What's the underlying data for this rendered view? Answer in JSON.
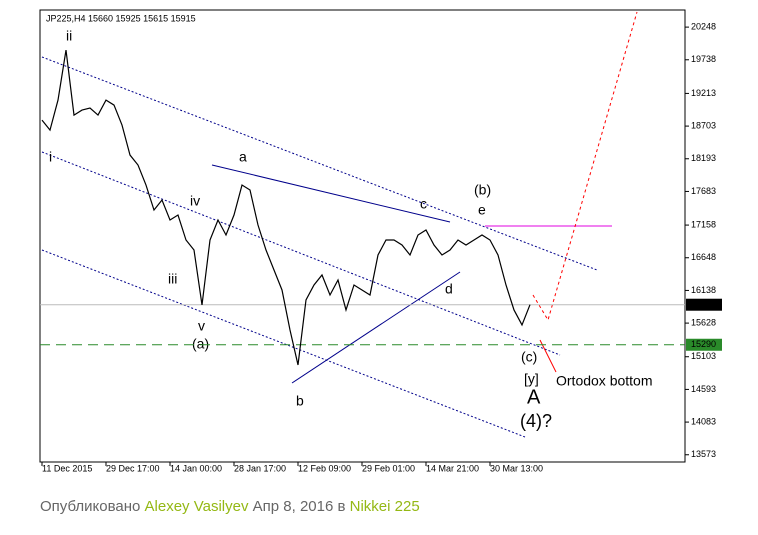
{
  "chart_data": {
    "type": "line",
    "title": "JP225,H4  15660 15925 15615 15915",
    "categories": [
      "11 Dec 2015",
      null,
      null,
      null,
      null,
      null,
      null,
      null,
      "29 Dec 17:00",
      null,
      null,
      null,
      null,
      null,
      null,
      null,
      "14 Jan 00:00",
      null,
      null,
      null,
      null,
      null,
      null,
      null,
      "28 Jan 17:00",
      null,
      null,
      null,
      null,
      null,
      null,
      null,
      "12 Feb 09:00",
      null,
      null,
      null,
      null,
      null,
      null,
      null,
      "29 Feb 01:00",
      null,
      null,
      null,
      null,
      null,
      null,
      null,
      "14 Mar 21:00",
      null,
      null,
      null,
      null,
      null,
      null,
      null,
      "30 Mar 13:00",
      null,
      null,
      null,
      null,
      null
    ],
    "values": [
      18797,
      18641,
      19109,
      19889,
      18875,
      18953,
      18984,
      18875,
      19109,
      19031,
      18719,
      18251,
      18095,
      17783,
      17393,
      17549,
      17237,
      17315,
      16925,
      16769,
      15911,
      16925,
      17237,
      17003,
      17315,
      17783,
      17705,
      17159,
      16769,
      16457,
      16145,
      15521,
      14975,
      15989,
      16223,
      16379,
      16067,
      16301,
      15833,
      16223,
      16145,
      16067,
      16691,
      16925,
      16925,
      16847,
      16691,
      17003,
      17081,
      16847,
      16691,
      16769,
      16925,
      16847,
      16925,
      17003,
      16925,
      16691,
      16223,
      15833,
      15599,
      15915
    ],
    "color": "#000000",
    "ylim": [
      13460,
      20515
    ],
    "yticks": [
      13573,
      14083,
      14593,
      15103,
      15628,
      16138,
      16648,
      17158,
      17683,
      18193,
      18703,
      19213,
      19738,
      20248
    ],
    "price_line": 15915,
    "support_line": 15290,
    "annotations": [
      "ii",
      "i",
      "iv",
      "iii",
      "v",
      "(a)",
      "a",
      "b",
      "c",
      "d",
      "e",
      "(b)",
      "(c)",
      "[y]",
      "A",
      "(4)?",
      "Ortodox bottom"
    ]
  },
  "footer": {
    "prefix": "Опубликовано",
    "author": "Alexey Vasilyev",
    "date": "Апр 8, 2016",
    "in": "в",
    "market": "Nikkei 225"
  }
}
